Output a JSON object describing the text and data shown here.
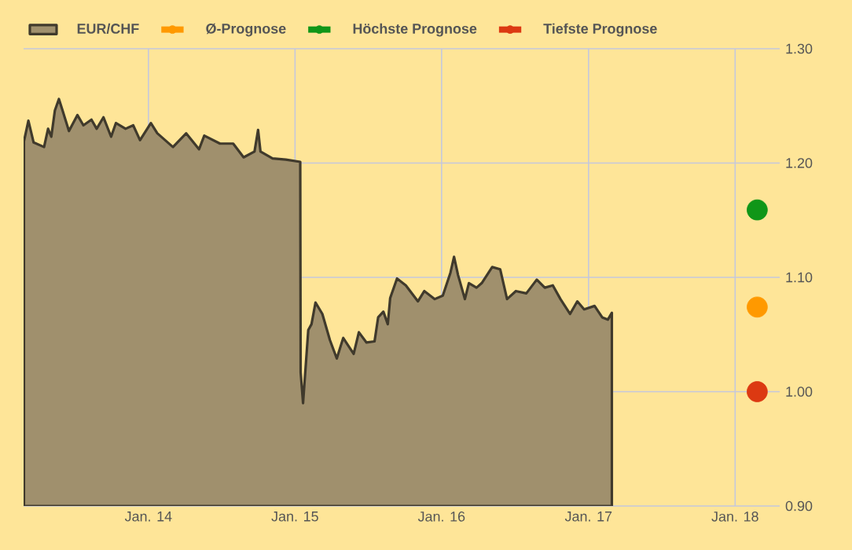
{
  "chart_data": {
    "type": "area",
    "xlim": [
      "2013-02-24",
      "2018-04-22"
    ],
    "ylim": [
      0.9,
      1.3
    ],
    "xticks": [
      {
        "value": "2014-01-01",
        "label": "Jan. 14"
      },
      {
        "value": "2015-01-01",
        "label": "Jan. 15"
      },
      {
        "value": "2016-01-01",
        "label": "Jan. 16"
      },
      {
        "value": "2017-01-01",
        "label": "Jan. 17"
      },
      {
        "value": "2018-01-01",
        "label": "Jan. 18"
      }
    ],
    "yticks": [
      {
        "value": 0.9,
        "label": "0.90"
      },
      {
        "value": 1.0,
        "label": "1.00"
      },
      {
        "value": 1.1,
        "label": "1.10"
      },
      {
        "value": 1.2,
        "label": "1.20"
      },
      {
        "value": 1.3,
        "label": "1.30"
      }
    ],
    "grid": true,
    "legend": "top",
    "series": [
      {
        "name": "EUR/CHF",
        "color": "#a0906d",
        "marker": "none",
        "x": [
          "2013-02-25",
          "2013-03-08",
          "2013-03-21",
          "2013-04-16",
          "2013-04-26",
          "2013-05-04",
          "2013-05-13",
          "2013-05-23",
          "2013-06-01",
          "2013-06-17",
          "2013-07-08",
          "2013-07-23",
          "2013-08-12",
          "2013-08-25",
          "2013-09-11",
          "2013-09-30",
          "2013-10-12",
          "2013-11-05",
          "2013-11-24",
          "2013-12-11",
          "2014-01-07",
          "2014-01-23",
          "2014-03-03",
          "2014-04-05",
          "2014-05-07",
          "2014-05-20",
          "2014-06-28",
          "2014-07-31",
          "2014-08-26",
          "2014-09-22",
          "2014-10-01",
          "2014-10-07",
          "2014-11-06",
          "2014-12-09",
          "2015-01-14",
          "2015-01-15",
          "2015-01-21",
          "2015-02-03",
          "2015-02-11",
          "2015-02-21",
          "2015-03-10",
          "2015-03-29",
          "2015-04-15",
          "2015-05-01",
          "2015-05-27",
          "2015-06-09",
          "2015-06-28",
          "2015-07-18",
          "2015-07-27",
          "2015-08-09",
          "2015-08-20",
          "2015-08-26",
          "2015-09-12",
          "2015-10-04",
          "2015-11-03",
          "2015-11-19",
          "2015-12-15",
          "2016-01-04",
          "2016-01-23",
          "2016-02-01",
          "2016-02-11",
          "2016-02-28",
          "2016-03-09",
          "2016-03-28",
          "2016-04-10",
          "2016-05-06",
          "2016-05-26",
          "2016-06-12",
          "2016-07-04",
          "2016-07-30",
          "2016-08-25",
          "2016-09-14",
          "2016-10-04",
          "2016-10-23",
          "2016-11-16",
          "2016-12-04",
          "2016-12-21",
          "2017-01-16",
          "2017-02-04",
          "2017-02-18",
          "2017-02-28"
        ],
        "values": [
          1.219,
          1.237,
          1.218,
          1.214,
          1.23,
          1.223,
          1.246,
          1.256,
          1.246,
          1.228,
          1.242,
          1.233,
          1.238,
          1.23,
          1.24,
          1.223,
          1.235,
          1.23,
          1.233,
          1.22,
          1.235,
          1.226,
          1.214,
          1.226,
          1.212,
          1.224,
          1.217,
          1.217,
          1.205,
          1.21,
          1.229,
          1.21,
          1.204,
          1.203,
          1.201,
          1.017,
          0.99,
          1.054,
          1.059,
          1.078,
          1.068,
          1.045,
          1.029,
          1.047,
          1.033,
          1.052,
          1.043,
          1.044,
          1.065,
          1.07,
          1.059,
          1.082,
          1.099,
          1.093,
          1.079,
          1.088,
          1.081,
          1.084,
          1.104,
          1.118,
          1.102,
          1.081,
          1.095,
          1.091,
          1.095,
          1.109,
          1.107,
          1.081,
          1.088,
          1.086,
          1.098,
          1.091,
          1.093,
          1.081,
          1.068,
          1.079,
          1.072,
          1.075,
          1.065,
          1.063,
          1.069
        ]
      },
      {
        "name": "Ø-Prognose",
        "type": "scatter",
        "color": "#ff9900",
        "marker": "circle",
        "x": [
          "2018-02-25"
        ],
        "values": [
          1.074
        ]
      },
      {
        "name": "Höchste Prognose",
        "type": "scatter",
        "color": "#109618",
        "marker": "circle",
        "x": [
          "2018-02-25"
        ],
        "values": [
          1.159
        ]
      },
      {
        "name": "Tiefste Prognose",
        "type": "scatter",
        "color": "#dc3912",
        "marker": "circle",
        "x": [
          "2018-02-25"
        ],
        "values": [
          1.0
        ]
      }
    ]
  }
}
